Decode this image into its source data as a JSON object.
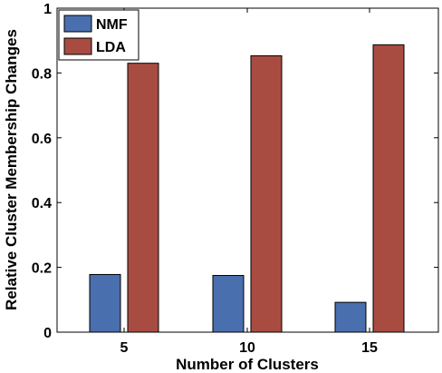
{
  "chart_data": {
    "type": "bar",
    "categories": [
      "5",
      "10",
      "15"
    ],
    "series": [
      {
        "name": "NMF",
        "values": [
          0.178,
          0.175,
          0.092
        ],
        "color": "#4a6fae"
      },
      {
        "name": "LDA",
        "values": [
          0.83,
          0.853,
          0.887
        ],
        "color": "#a84c42"
      }
    ],
    "xlabel": "Number of Clusters",
    "ylabel": "Relative Cluster Membership Changes",
    "ylim": [
      0,
      1
    ],
    "yticks": [
      0,
      0.2,
      0.4,
      0.6,
      0.8,
      1
    ],
    "ytick_labels": [
      "0",
      "0.2",
      "0.4",
      "0.6",
      "0.8",
      "1"
    ],
    "legend_position": "top-left",
    "grid": false
  }
}
